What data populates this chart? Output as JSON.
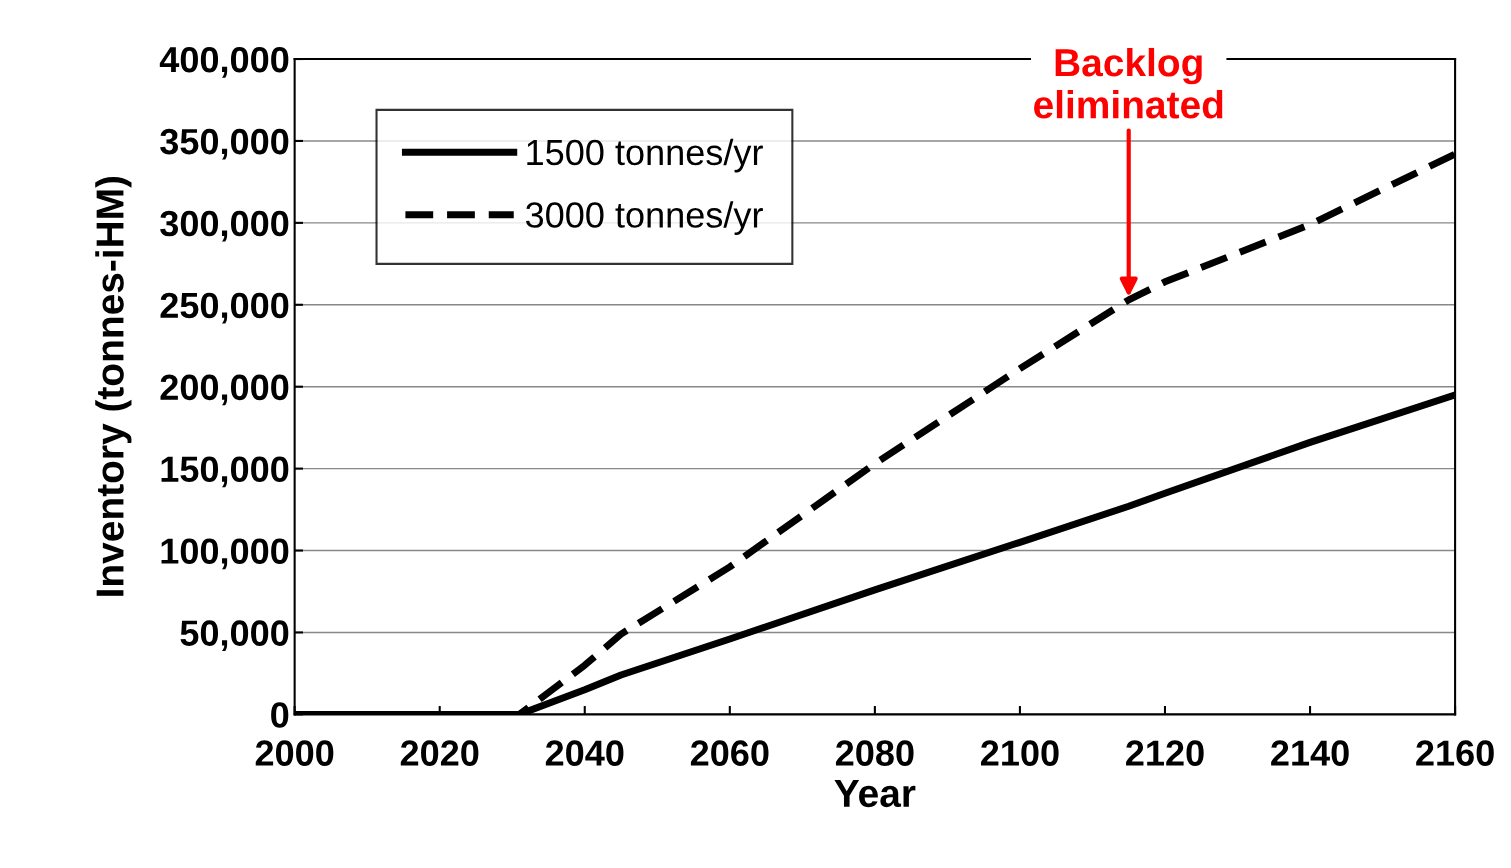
{
  "chart_data": {
    "type": "line",
    "xlabel": "Year",
    "ylabel": "Inventory (tonnes-iHM)",
    "x": [
      2000,
      2031,
      2040,
      2045,
      2060,
      2080,
      2100,
      2115,
      2120,
      2140,
      2160
    ],
    "series": [
      {
        "name": "1500 tonnes/yr",
        "color": "#000000",
        "line_style": "solid",
        "values": [
          0,
          0,
          15000,
          24000,
          46000,
          76000,
          105000,
          127000,
          135000,
          166000,
          195000
        ]
      },
      {
        "name": "3000 tonnes/yr",
        "color": "#000000",
        "line_style": "dashed",
        "values": [
          0,
          0,
          30000,
          49000,
          90000,
          153000,
          211000,
          253000,
          264000,
          299000,
          342000
        ]
      }
    ],
    "xlim": [
      2000,
      2160
    ],
    "xticks": [
      2000,
      2020,
      2040,
      2060,
      2080,
      2100,
      2120,
      2140,
      2160
    ],
    "ylim": [
      0,
      400000
    ],
    "yticks": [
      {
        "value": 0,
        "label": "0"
      },
      {
        "value": 50000,
        "label": "50,000"
      },
      {
        "value": 100000,
        "label": "100,000"
      },
      {
        "value": 150000,
        "label": "150,000"
      },
      {
        "value": 200000,
        "label": "200,000"
      },
      {
        "value": 250000,
        "label": "250,000"
      },
      {
        "value": 300000,
        "label": "300,000"
      },
      {
        "value": 350000,
        "label": "350,000"
      },
      {
        "value": 400000,
        "label": "400,000"
      }
    ],
    "grid": "y",
    "legend": "top left",
    "marker": "none",
    "annotations": [
      {
        "text": "Backlog\neliminated",
        "x": 2115,
        "y": 253000
      }
    ]
  }
}
